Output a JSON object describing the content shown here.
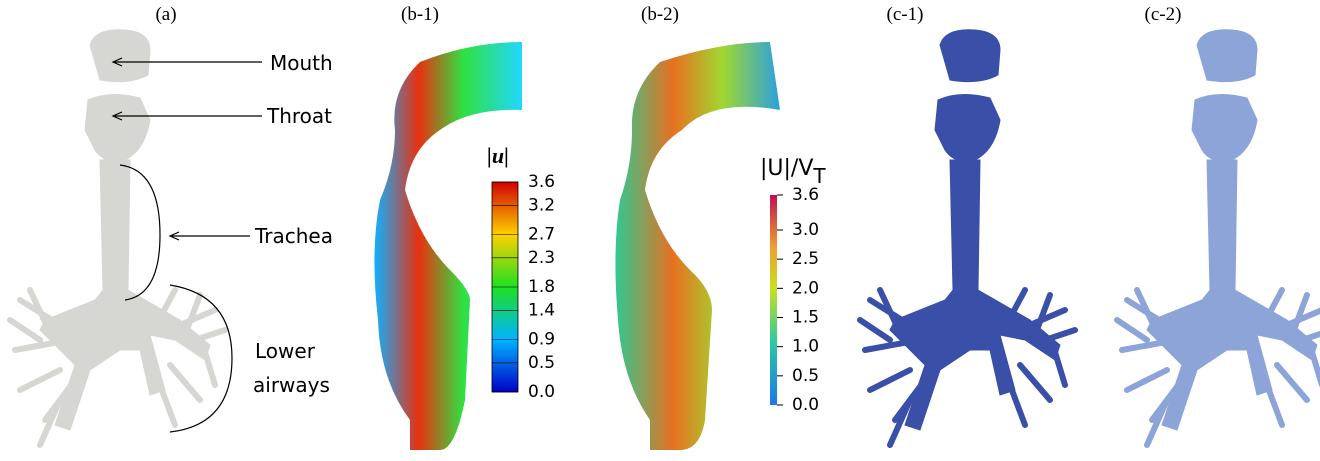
{
  "panels": [
    {
      "label": "(a)"
    },
    {
      "label": "(b-1)"
    },
    {
      "label": "(b-2)"
    },
    {
      "label": "(c-1)"
    },
    {
      "label": "(c-2)"
    }
  ],
  "annotations": {
    "mouth": "Mouth",
    "throat": "Throat",
    "trachea": "Trachea",
    "lower_line1": "Lower",
    "lower_line2": "airways"
  },
  "colorbars": [
    {
      "title": "|u|",
      "range": [
        0,
        3.6
      ],
      "ticks": [
        {
          "value": 3.6,
          "label": "3.6"
        },
        {
          "value": 3.2,
          "label": "3.2"
        },
        {
          "value": 2.7,
          "label": "2.7"
        },
        {
          "value": 2.3,
          "label": "2.3"
        },
        {
          "value": 1.8,
          "label": "1.8"
        },
        {
          "value": 1.4,
          "label": "1.4"
        },
        {
          "value": 0.9,
          "label": "0.9"
        },
        {
          "value": 0.5,
          "label": "0.5"
        },
        {
          "value": 0,
          "label": "0.0"
        }
      ]
    },
    {
      "title": "|U|/V",
      "title_subscript": "T",
      "range": [
        0,
        3.6
      ],
      "ticks": [
        {
          "value": 3.6,
          "label": "3.6"
        },
        {
          "value": 3,
          "label": "3.0"
        },
        {
          "value": 2.5,
          "label": "2.5"
        },
        {
          "value": 2,
          "label": "2.0"
        },
        {
          "value": 1.5,
          "label": "1.5"
        },
        {
          "value": 1,
          "label": "1.0"
        },
        {
          "value": 0.5,
          "label": "0.5"
        },
        {
          "value": 0,
          "label": "0.0"
        }
      ]
    }
  ]
}
